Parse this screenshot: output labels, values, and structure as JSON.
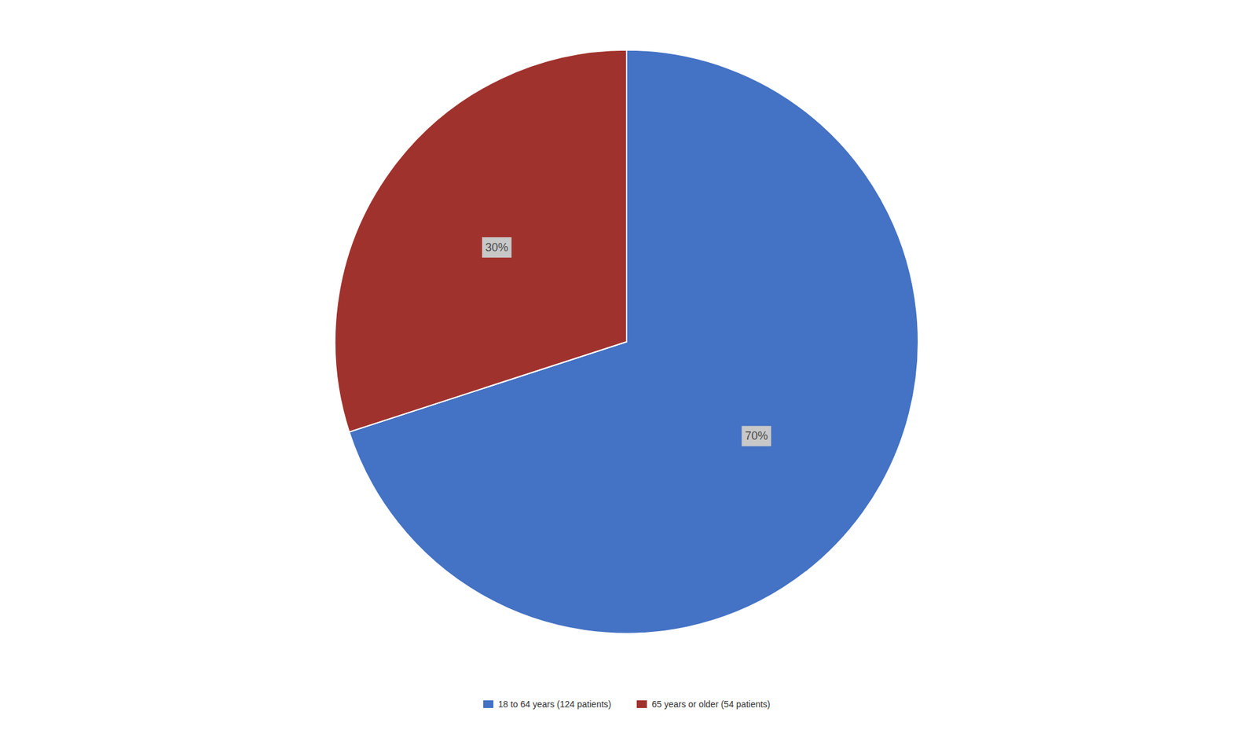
{
  "chart_data": {
    "type": "pie",
    "categories": [
      "18 to 64 years (124 patients)",
      "65 years or older (54 patients)"
    ],
    "values": [
      70,
      30
    ],
    "value_labels": [
      "70%",
      "30%"
    ],
    "data_labels": true,
    "colors": [
      "#4472C4",
      "#A0322D"
    ],
    "legend": "bottom"
  }
}
